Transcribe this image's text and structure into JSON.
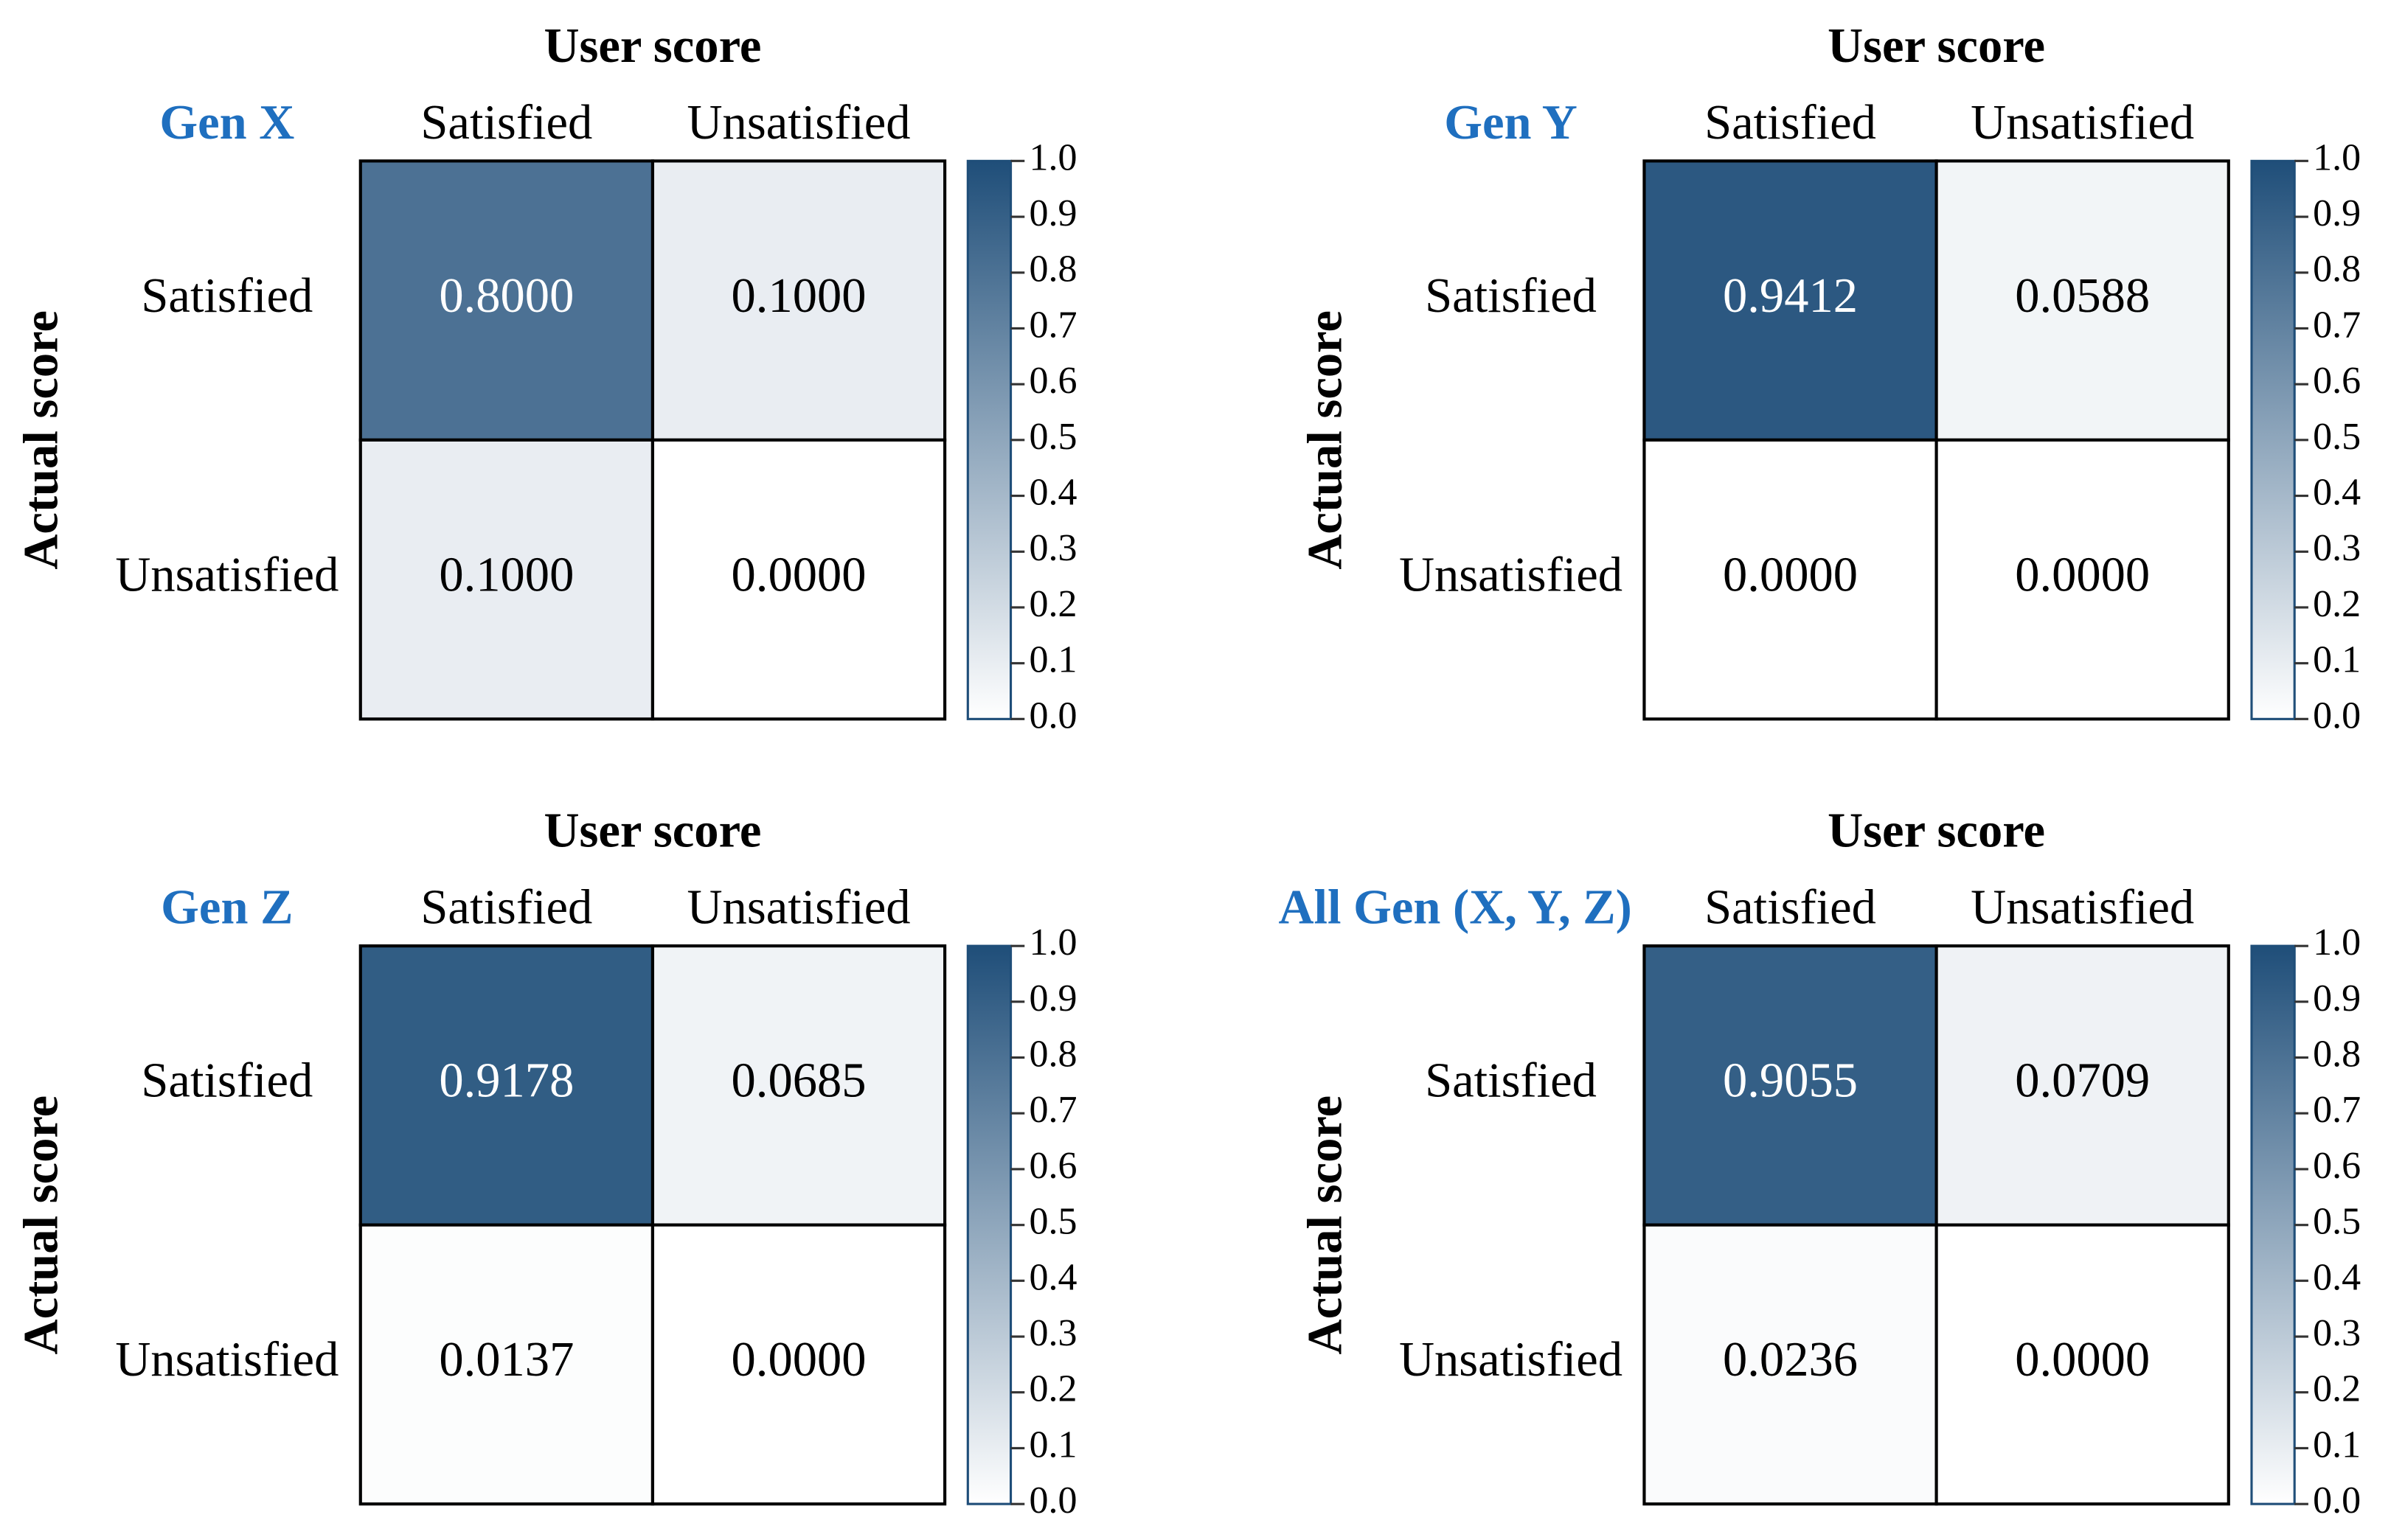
{
  "chart_data": [
    {
      "type": "heatmap",
      "title": "Gen X",
      "x_label": "User score",
      "y_label": "Actual score",
      "x_categories": [
        "Satisfied",
        "Unsatisfied"
      ],
      "y_categories": [
        "Satisfied",
        "Unsatisfied"
      ],
      "values": [
        [
          0.8,
          0.1
        ],
        [
          0.1,
          0.0
        ]
      ],
      "value_labels": [
        [
          "0.8000",
          "0.1000"
        ],
        [
          "0.1000",
          "0.0000"
        ]
      ],
      "colormap": [
        "#ffffff",
        "#1f4e79"
      ],
      "clim": [
        0,
        1
      ],
      "cticks": [
        {
          "value": 0,
          "label": "0.0"
        },
        0.1,
        0.2,
        0.3,
        0.4,
        0.5,
        0.6,
        0.7,
        0.8,
        0.9,
        {
          "value": 1,
          "label": "1.0"
        }
      ]
    },
    {
      "type": "heatmap",
      "title": "Gen Y",
      "x_label": "User score",
      "y_label": "Actual score",
      "x_categories": [
        "Satisfied",
        "Unsatisfied"
      ],
      "y_categories": [
        "Satisfied",
        "Unsatisfied"
      ],
      "values": [
        [
          0.9412,
          0.0588
        ],
        [
          0.0,
          0.0
        ]
      ],
      "value_labels": [
        [
          "0.9412",
          "0.0588"
        ],
        [
          "0.0000",
          "0.0000"
        ]
      ],
      "colormap": [
        "#ffffff",
        "#1f4e79"
      ],
      "clim": [
        0,
        1
      ],
      "cticks": [
        {
          "value": 0,
          "label": "0.0"
        },
        0.1,
        0.2,
        0.3,
        0.4,
        0.5,
        0.6,
        0.7,
        0.8,
        0.9,
        {
          "value": 1,
          "label": "1.0"
        }
      ]
    },
    {
      "type": "heatmap",
      "title": "Gen Z",
      "x_label": "User score",
      "y_label": "Actual score",
      "x_categories": [
        "Satisfied",
        "Unsatisfied"
      ],
      "y_categories": [
        "Satisfied",
        "Unsatisfied"
      ],
      "values": [
        [
          0.9178,
          0.0685
        ],
        [
          0.0137,
          0.0
        ]
      ],
      "value_labels": [
        [
          "0.9178",
          "0.0685"
        ],
        [
          "0.0137",
          "0.0000"
        ]
      ],
      "colormap": [
        "#ffffff",
        "#1f4e79"
      ],
      "clim": [
        0,
        1
      ],
      "cticks": [
        {
          "value": 0,
          "label": "0.0"
        },
        0.1,
        0.2,
        0.3,
        0.4,
        0.5,
        0.6,
        0.7,
        0.8,
        0.9,
        {
          "value": 1,
          "label": "1.0"
        }
      ]
    },
    {
      "type": "heatmap",
      "title": "All Gen (X, Y, Z)",
      "x_label": "User score",
      "y_label": "Actual score",
      "x_categories": [
        "Satisfied",
        "Unsatisfied"
      ],
      "y_categories": [
        "Satisfied",
        "Unsatisfied"
      ],
      "values": [
        [
          0.9055,
          0.0709
        ],
        [
          0.0236,
          0.0
        ]
      ],
      "value_labels": [
        [
          "0.9055",
          "0.0709"
        ],
        [
          "0.0236",
          "0.0000"
        ]
      ],
      "colormap": [
        "#ffffff",
        "#1f4e79"
      ],
      "clim": [
        0,
        1
      ],
      "cticks": [
        {
          "value": 0,
          "label": "0.0"
        },
        0.1,
        0.2,
        0.3,
        0.4,
        0.5,
        0.6,
        0.7,
        0.8,
        0.9,
        {
          "value": 1,
          "label": "1.0"
        }
      ]
    }
  ]
}
